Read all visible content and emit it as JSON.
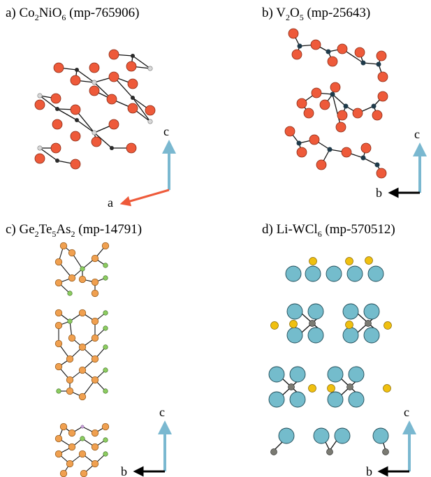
{
  "panels": [
    {
      "id": "a",
      "title_parts": [
        "a) Co",
        "2",
        "NiO",
        "6",
        " (mp-765906)"
      ],
      "axis_vertical": "c",
      "axis_horizontal": "a",
      "colors": {
        "O": "#ee5a3a",
        "metal_dark": "#2a2a2a",
        "metal_light": "#d9d9d9",
        "axis_v": "#7ab8d0",
        "axis_h": "#ee5a3a"
      }
    },
    {
      "id": "b",
      "title_parts": [
        "b) V",
        "2",
        "O",
        "5",
        " (mp-25643)"
      ],
      "axis_vertical": "c",
      "axis_horizontal": "b",
      "colors": {
        "O": "#ee5a3a",
        "V": "#1e3a4a",
        "axis_v": "#7ab8d0",
        "axis_h": "#000000"
      }
    },
    {
      "id": "c",
      "title_parts": [
        "c) Ge",
        "2",
        "Te",
        "5",
        "As",
        "2",
        " (mp-14791)"
      ],
      "axis_vertical": "c",
      "axis_horizontal": "b",
      "colors": {
        "Te": "#f0a050",
        "Ge": "#8ccc60",
        "As": "#c8a0d8",
        "axis_v": "#7ab8d0",
        "axis_h": "#000000"
      }
    },
    {
      "id": "d",
      "title_parts": [
        "d) Li-WCl",
        "6",
        " (mp-570512)"
      ],
      "axis_vertical": "c",
      "axis_horizontal": "b",
      "colors": {
        "Cl": "#74bccc",
        "Li": "#f0c010",
        "W": "#7a7a72",
        "axis_v": "#7ab8d0",
        "axis_h": "#000000"
      }
    }
  ]
}
